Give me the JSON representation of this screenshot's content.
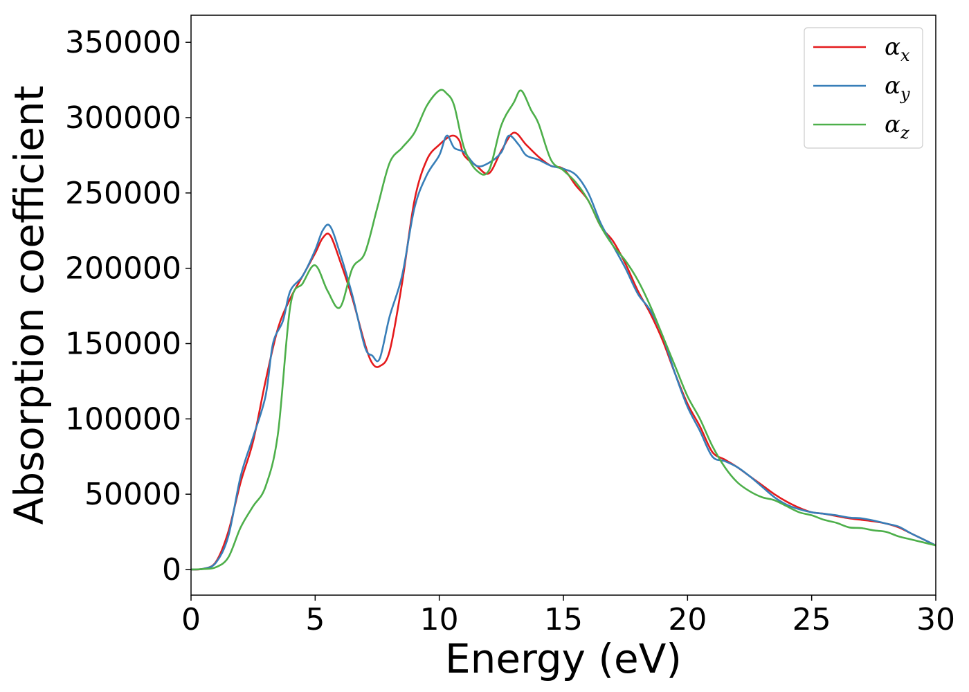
{
  "chart_data": {
    "type": "line",
    "xlabel": "Energy (eV)",
    "ylabel": "Absorption coefficient",
    "xlim": [
      0,
      30
    ],
    "ylim": [
      -17000,
      368000
    ],
    "xticks": [
      0,
      5,
      10,
      15,
      20,
      25,
      30
    ],
    "xtick_labels": [
      "0",
      "5",
      "10",
      "15",
      "20",
      "25",
      "30"
    ],
    "yticks": [
      0,
      50000,
      100000,
      150000,
      200000,
      250000,
      300000,
      350000
    ],
    "ytick_labels": [
      "0",
      "50000",
      "100000",
      "150000",
      "200000",
      "250000",
      "300000",
      "350000"
    ],
    "grid": false,
    "legend_position": "top-right",
    "series": [
      {
        "name": "α",
        "sub": "x",
        "color": "#e41a1c",
        "points": [
          [
            0,
            0
          ],
          [
            0.5,
            500
          ],
          [
            1,
            5000
          ],
          [
            1.5,
            25000
          ],
          [
            2,
            58000
          ],
          [
            2.5,
            85000
          ],
          [
            3,
            125000
          ],
          [
            3.5,
            160000
          ],
          [
            4,
            180000
          ],
          [
            4.5,
            195000
          ],
          [
            5,
            210000
          ],
          [
            5.3,
            220000
          ],
          [
            5.6,
            222000
          ],
          [
            6,
            205000
          ],
          [
            6.5,
            180000
          ],
          [
            7,
            150000
          ],
          [
            7.3,
            137000
          ],
          [
            7.6,
            135000
          ],
          [
            8,
            145000
          ],
          [
            8.5,
            190000
          ],
          [
            9,
            245000
          ],
          [
            9.5,
            272000
          ],
          [
            10,
            282000
          ],
          [
            10.5,
            288000
          ],
          [
            10.8,
            285000
          ],
          [
            11,
            275000
          ],
          [
            11.5,
            268000
          ],
          [
            12,
            263000
          ],
          [
            12.5,
            278000
          ],
          [
            13,
            290000
          ],
          [
            13.5,
            282000
          ],
          [
            14,
            274000
          ],
          [
            14.5,
            268000
          ],
          [
            15,
            266000
          ],
          [
            15.5,
            255000
          ],
          [
            16,
            245000
          ],
          [
            16.5,
            228000
          ],
          [
            17,
            218000
          ],
          [
            17.5,
            203000
          ],
          [
            18,
            185000
          ],
          [
            18.5,
            170000
          ],
          [
            19,
            152000
          ],
          [
            19.5,
            130000
          ],
          [
            20,
            110000
          ],
          [
            20.5,
            95000
          ],
          [
            21,
            78000
          ],
          [
            21.5,
            73000
          ],
          [
            22,
            68000
          ],
          [
            22.5,
            62000
          ],
          [
            23,
            56000
          ],
          [
            23.5,
            50000
          ],
          [
            24,
            45000
          ],
          [
            24.5,
            41000
          ],
          [
            25,
            38000
          ],
          [
            25.5,
            37000
          ],
          [
            26,
            35500
          ],
          [
            26.5,
            34000
          ],
          [
            27,
            33000
          ],
          [
            27.5,
            32000
          ],
          [
            28,
            30500
          ],
          [
            28.5,
            28000
          ],
          [
            29,
            24000
          ],
          [
            29.5,
            20000
          ],
          [
            30,
            16000
          ]
        ]
      },
      {
        "name": "α",
        "sub": "y",
        "color": "#377eb8",
        "points": [
          [
            0,
            0
          ],
          [
            0.5,
            500
          ],
          [
            1,
            4500
          ],
          [
            1.5,
            22000
          ],
          [
            2,
            62000
          ],
          [
            2.5,
            88000
          ],
          [
            3,
            115000
          ],
          [
            3.3,
            150000
          ],
          [
            3.7,
            165000
          ],
          [
            4,
            185000
          ],
          [
            4.5,
            195000
          ],
          [
            5,
            212000
          ],
          [
            5.3,
            225000
          ],
          [
            5.6,
            228000
          ],
          [
            6,
            210000
          ],
          [
            6.5,
            182000
          ],
          [
            7,
            148000
          ],
          [
            7.3,
            142000
          ],
          [
            7.6,
            140000
          ],
          [
            8,
            168000
          ],
          [
            8.5,
            195000
          ],
          [
            9,
            240000
          ],
          [
            9.5,
            262000
          ],
          [
            10,
            275000
          ],
          [
            10.3,
            288000
          ],
          [
            10.6,
            280000
          ],
          [
            11,
            277000
          ],
          [
            11.5,
            268000
          ],
          [
            12,
            270000
          ],
          [
            12.5,
            277000
          ],
          [
            12.8,
            288000
          ],
          [
            13.2,
            282000
          ],
          [
            13.5,
            275000
          ],
          [
            14,
            272000
          ],
          [
            14.5,
            268000
          ],
          [
            15,
            266000
          ],
          [
            15.5,
            262000
          ],
          [
            16,
            250000
          ],
          [
            16.5,
            230000
          ],
          [
            17,
            215000
          ],
          [
            17.5,
            200000
          ],
          [
            18,
            183000
          ],
          [
            18.5,
            172000
          ],
          [
            19,
            155000
          ],
          [
            19.5,
            130000
          ],
          [
            20,
            108000
          ],
          [
            20.5,
            92000
          ],
          [
            21,
            75000
          ],
          [
            21.5,
            72000
          ],
          [
            22,
            68000
          ],
          [
            22.5,
            62000
          ],
          [
            23,
            55000
          ],
          [
            23.5,
            48000
          ],
          [
            24,
            43000
          ],
          [
            24.5,
            40000
          ],
          [
            25,
            38000
          ],
          [
            25.5,
            37000
          ],
          [
            26,
            36000
          ],
          [
            26.5,
            34500
          ],
          [
            27,
            34000
          ],
          [
            27.5,
            32500
          ],
          [
            28,
            30500
          ],
          [
            28.5,
            28500
          ],
          [
            29,
            24000
          ],
          [
            29.5,
            20000
          ],
          [
            30,
            16000
          ]
        ]
      },
      {
        "name": "α",
        "sub": "z",
        "color": "#4daf4a",
        "points": [
          [
            0,
            0
          ],
          [
            0.5,
            300
          ],
          [
            1,
            1500
          ],
          [
            1.5,
            8000
          ],
          [
            2,
            28000
          ],
          [
            2.5,
            42000
          ],
          [
            3,
            55000
          ],
          [
            3.5,
            90000
          ],
          [
            4,
            175000
          ],
          [
            4.5,
            190000
          ],
          [
            5,
            202000
          ],
          [
            5.5,
            185000
          ],
          [
            6,
            174000
          ],
          [
            6.5,
            200000
          ],
          [
            7,
            210000
          ],
          [
            7.5,
            240000
          ],
          [
            8,
            270000
          ],
          [
            8.5,
            280000
          ],
          [
            9,
            290000
          ],
          [
            9.5,
            308000
          ],
          [
            10,
            318000
          ],
          [
            10.3,
            316000
          ],
          [
            10.6,
            308000
          ],
          [
            11,
            280000
          ],
          [
            11.5,
            265000
          ],
          [
            12,
            265000
          ],
          [
            12.5,
            295000
          ],
          [
            13,
            310000
          ],
          [
            13.3,
            318000
          ],
          [
            13.7,
            305000
          ],
          [
            14,
            296000
          ],
          [
            14.5,
            272000
          ],
          [
            15,
            265000
          ],
          [
            15.5,
            257000
          ],
          [
            16,
            245000
          ],
          [
            16.5,
            228000
          ],
          [
            17,
            215000
          ],
          [
            17.5,
            205000
          ],
          [
            18,
            192000
          ],
          [
            18.5,
            175000
          ],
          [
            19,
            155000
          ],
          [
            19.5,
            135000
          ],
          [
            20,
            115000
          ],
          [
            20.5,
            100000
          ],
          [
            21,
            82000
          ],
          [
            21.5,
            68000
          ],
          [
            22,
            58000
          ],
          [
            22.5,
            52000
          ],
          [
            23,
            48000
          ],
          [
            23.5,
            46000
          ],
          [
            24,
            42000
          ],
          [
            24.5,
            38000
          ],
          [
            25,
            36000
          ],
          [
            25.5,
            33000
          ],
          [
            26,
            31000
          ],
          [
            26.5,
            28000
          ],
          [
            27,
            27500
          ],
          [
            27.5,
            26000
          ],
          [
            28,
            25000
          ],
          [
            28.5,
            22000
          ],
          [
            29,
            20000
          ],
          [
            29.5,
            18000
          ],
          [
            30,
            16000
          ]
        ]
      }
    ]
  }
}
